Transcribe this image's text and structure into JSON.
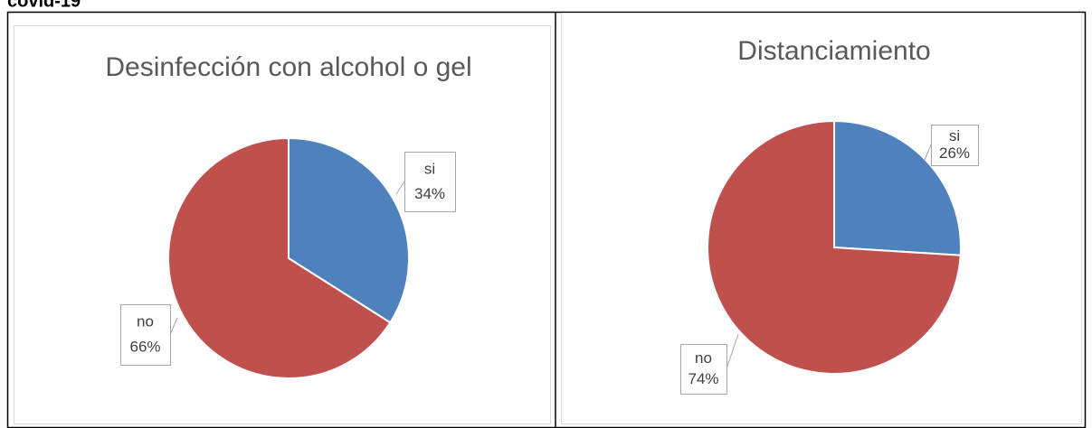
{
  "heading": "covid-19",
  "chart_data": [
    {
      "type": "pie",
      "title": "Desinfección con alcohol o gel",
      "categories": [
        "si",
        "no"
      ],
      "values": [
        34,
        66
      ],
      "value_labels": [
        "34%",
        "66%"
      ],
      "colors": [
        "#4f81bd",
        "#c0504d"
      ]
    },
    {
      "type": "pie",
      "title": "Distanciamiento",
      "categories": [
        "si",
        "no"
      ],
      "values": [
        26,
        74
      ],
      "value_labels": [
        "26%",
        "74%"
      ],
      "colors": [
        "#4f81bd",
        "#c0504d"
      ]
    }
  ]
}
